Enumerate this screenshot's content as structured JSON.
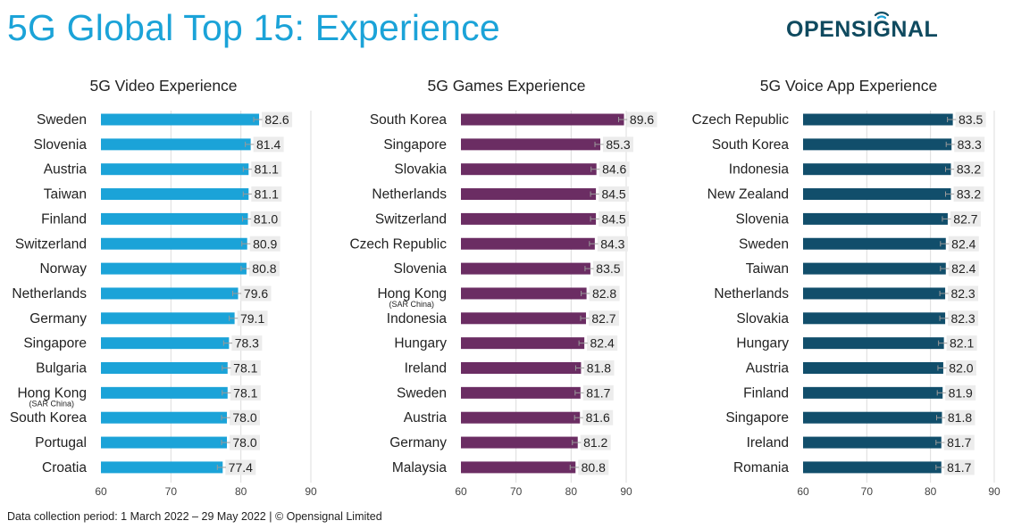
{
  "title": "5G Global Top 15: Experience",
  "brand": {
    "name": "OPENSIGNAL"
  },
  "footer": "Data collection period: 1 March 2022 – 29 May 2022 |  © Opensignal Limited",
  "colors": {
    "title": "#1ba3d8",
    "video": "#1ba3d8",
    "games": "#6b2d63",
    "voice": "#114e6b",
    "brand": "#0f4a5f",
    "brand_accent": "#1ba3d8"
  },
  "chart_data": [
    {
      "type": "bar",
      "orientation": "horizontal",
      "title": "5G Video Experience",
      "categories": [
        "Sweden",
        "Slovenia",
        "Austria",
        "Taiwan",
        "Finland",
        "Switzerland",
        "Norway",
        "Netherlands",
        "Germany",
        "Singapore",
        "Bulgaria",
        "Hong Kong",
        "South Korea",
        "Portugal",
        "Croatia"
      ],
      "sublabels": {
        "Hong Kong": "(SAR China)"
      },
      "values": [
        82.6,
        81.4,
        81.1,
        81.1,
        81.0,
        80.9,
        80.8,
        79.6,
        79.1,
        78.3,
        78.1,
        78.1,
        78.0,
        78.0,
        77.4
      ],
      "xlim": [
        60,
        90
      ],
      "xticks": [
        60,
        70,
        80,
        90
      ],
      "grid": "vertical",
      "error_bars": true
    },
    {
      "type": "bar",
      "orientation": "horizontal",
      "title": "5G Games Experience",
      "categories": [
        "South Korea",
        "Singapore",
        "Slovakia",
        "Netherlands",
        "Switzerland",
        "Czech Republic",
        "Slovenia",
        "Hong Kong",
        "Indonesia",
        "Hungary",
        "Ireland",
        "Sweden",
        "Austria",
        "Germany",
        "Malaysia"
      ],
      "sublabels": {
        "Hong Kong": "(SAR China)"
      },
      "values": [
        89.6,
        85.3,
        84.6,
        84.5,
        84.5,
        84.3,
        83.5,
        82.8,
        82.7,
        82.4,
        81.8,
        81.7,
        81.6,
        81.2,
        80.8
      ],
      "xlim": [
        60,
        90
      ],
      "xticks": [
        60,
        70,
        80,
        90
      ],
      "grid": "vertical",
      "error_bars": true
    },
    {
      "type": "bar",
      "orientation": "horizontal",
      "title": "5G Voice App Experience",
      "categories": [
        "Czech Republic",
        "South Korea",
        "Indonesia",
        "New Zealand",
        "Slovenia",
        "Sweden",
        "Taiwan",
        "Netherlands",
        "Slovakia",
        "Hungary",
        "Austria",
        "Finland",
        "Singapore",
        "Ireland",
        "Romania"
      ],
      "values": [
        83.5,
        83.3,
        83.2,
        83.2,
        82.7,
        82.4,
        82.4,
        82.3,
        82.3,
        82.1,
        82.0,
        81.9,
        81.8,
        81.7,
        81.7
      ],
      "xlim": [
        60,
        90
      ],
      "xticks": [
        60,
        70,
        80,
        90
      ],
      "grid": "vertical",
      "error_bars": true
    }
  ]
}
